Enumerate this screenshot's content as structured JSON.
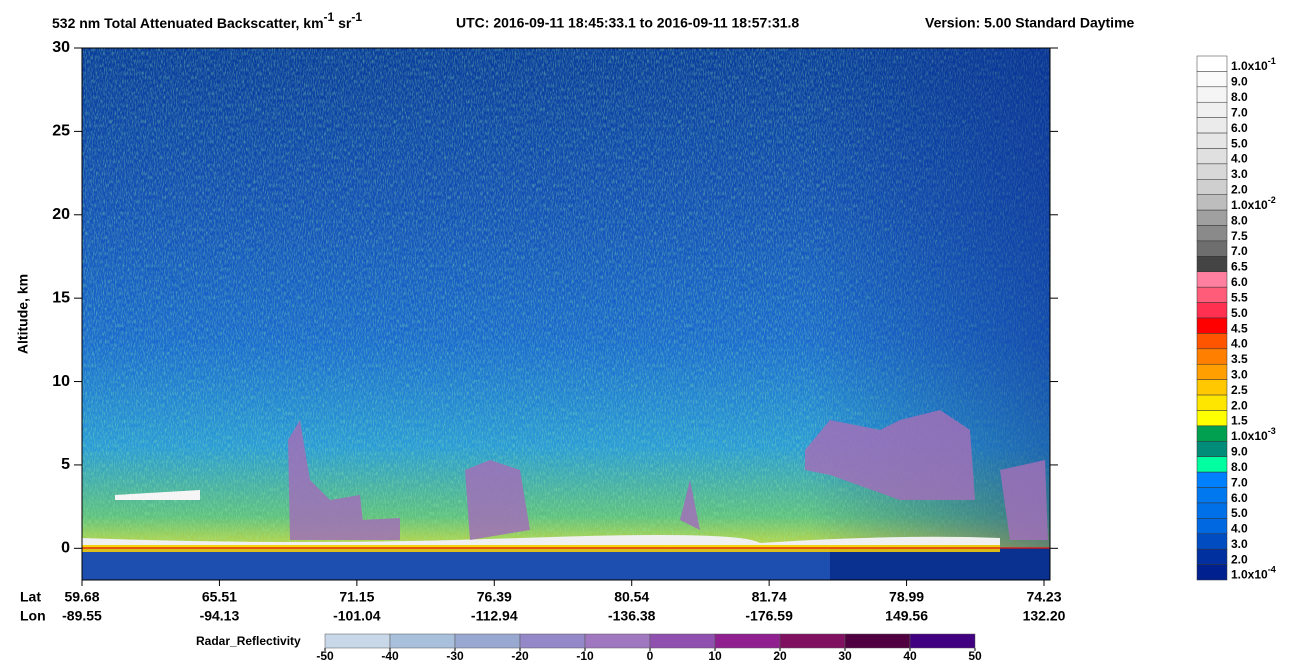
{
  "title": {
    "main": "532 nm Total Attenuated Backscatter, km",
    "sup1": "-1",
    "unit2": " sr",
    "sup2": "-1"
  },
  "utc": "UTC:  2016-09-11 18:45:33.1  to  2016-09-11 18:57:31.8",
  "version": "Version: 5.00  Standard  Daytime",
  "y_axis": {
    "label": "Altitude, km",
    "lim": [
      -1.9,
      30
    ],
    "ticks": [
      0,
      5,
      10,
      15,
      20,
      25,
      30
    ]
  },
  "x_axis": {
    "row_labels": [
      "Lat",
      "Lon"
    ],
    "lat": [
      "59.68",
      "65.51",
      "71.15",
      "76.39",
      "80.54",
      "81.74",
      "78.99",
      "74.23"
    ],
    "lon": [
      "-89.55",
      "-94.13",
      "-101.04",
      "-112.94",
      "-136.38",
      "-176.59",
      "149.56",
      "132.20"
    ]
  },
  "colorbar": {
    "labels": [
      {
        "base": "1.0x10",
        "exp": "-1"
      },
      "9.0",
      "8.0",
      "7.0",
      "6.0",
      "5.0",
      "4.0",
      "3.0",
      "2.0",
      {
        "base": "1.0x10",
        "exp": "-2"
      },
      "8.0",
      "7.5",
      "7.0",
      "6.5",
      "6.0",
      "5.5",
      "5.0",
      "4.5",
      "4.0",
      "3.5",
      "3.0",
      "2.5",
      "2.0",
      "1.5",
      {
        "base": "1.0x10",
        "exp": "-3"
      },
      "9.0",
      "8.0",
      "7.0",
      "6.0",
      "5.0",
      "4.0",
      "3.0",
      "2.0",
      {
        "base": "1.0x10",
        "exp": "-4"
      }
    ],
    "colors": [
      "#ffffff",
      "#fafafa",
      "#f5f5f5",
      "#f0f0f0",
      "#ebebeb",
      "#e6e6e6",
      "#e0e0e0",
      "#d8d8d8",
      "#cfcfcf",
      "#bdbdbd",
      "#a0a0a0",
      "#8a8a8a",
      "#6e6e6e",
      "#444444",
      "#ff7fa0",
      "#ff5c7a",
      "#ff3050",
      "#ff0000",
      "#ff5500",
      "#ff7f00",
      "#ff9f00",
      "#ffc800",
      "#ffe600",
      "#ffff00",
      "#00a050",
      "#008c78",
      "#00ffa0",
      "#0080ff",
      "#0078f0",
      "#0070e8",
      "#0068e0",
      "#004cc0",
      "#0030a0",
      "#002090"
    ]
  },
  "radar_colorbar": {
    "label": "Radar_Reflectivity",
    "lim": [
      -50,
      50
    ],
    "ticks": [
      -50,
      -40,
      -30,
      -20,
      -10,
      0,
      10,
      20,
      30,
      40,
      50
    ],
    "colors": [
      "#c8d8e8",
      "#a8c0dc",
      "#98a8d0",
      "#9488c8",
      "#a078c0",
      "#9050b0",
      "#902090",
      "#801060",
      "#500040",
      "#400080"
    ]
  }
}
